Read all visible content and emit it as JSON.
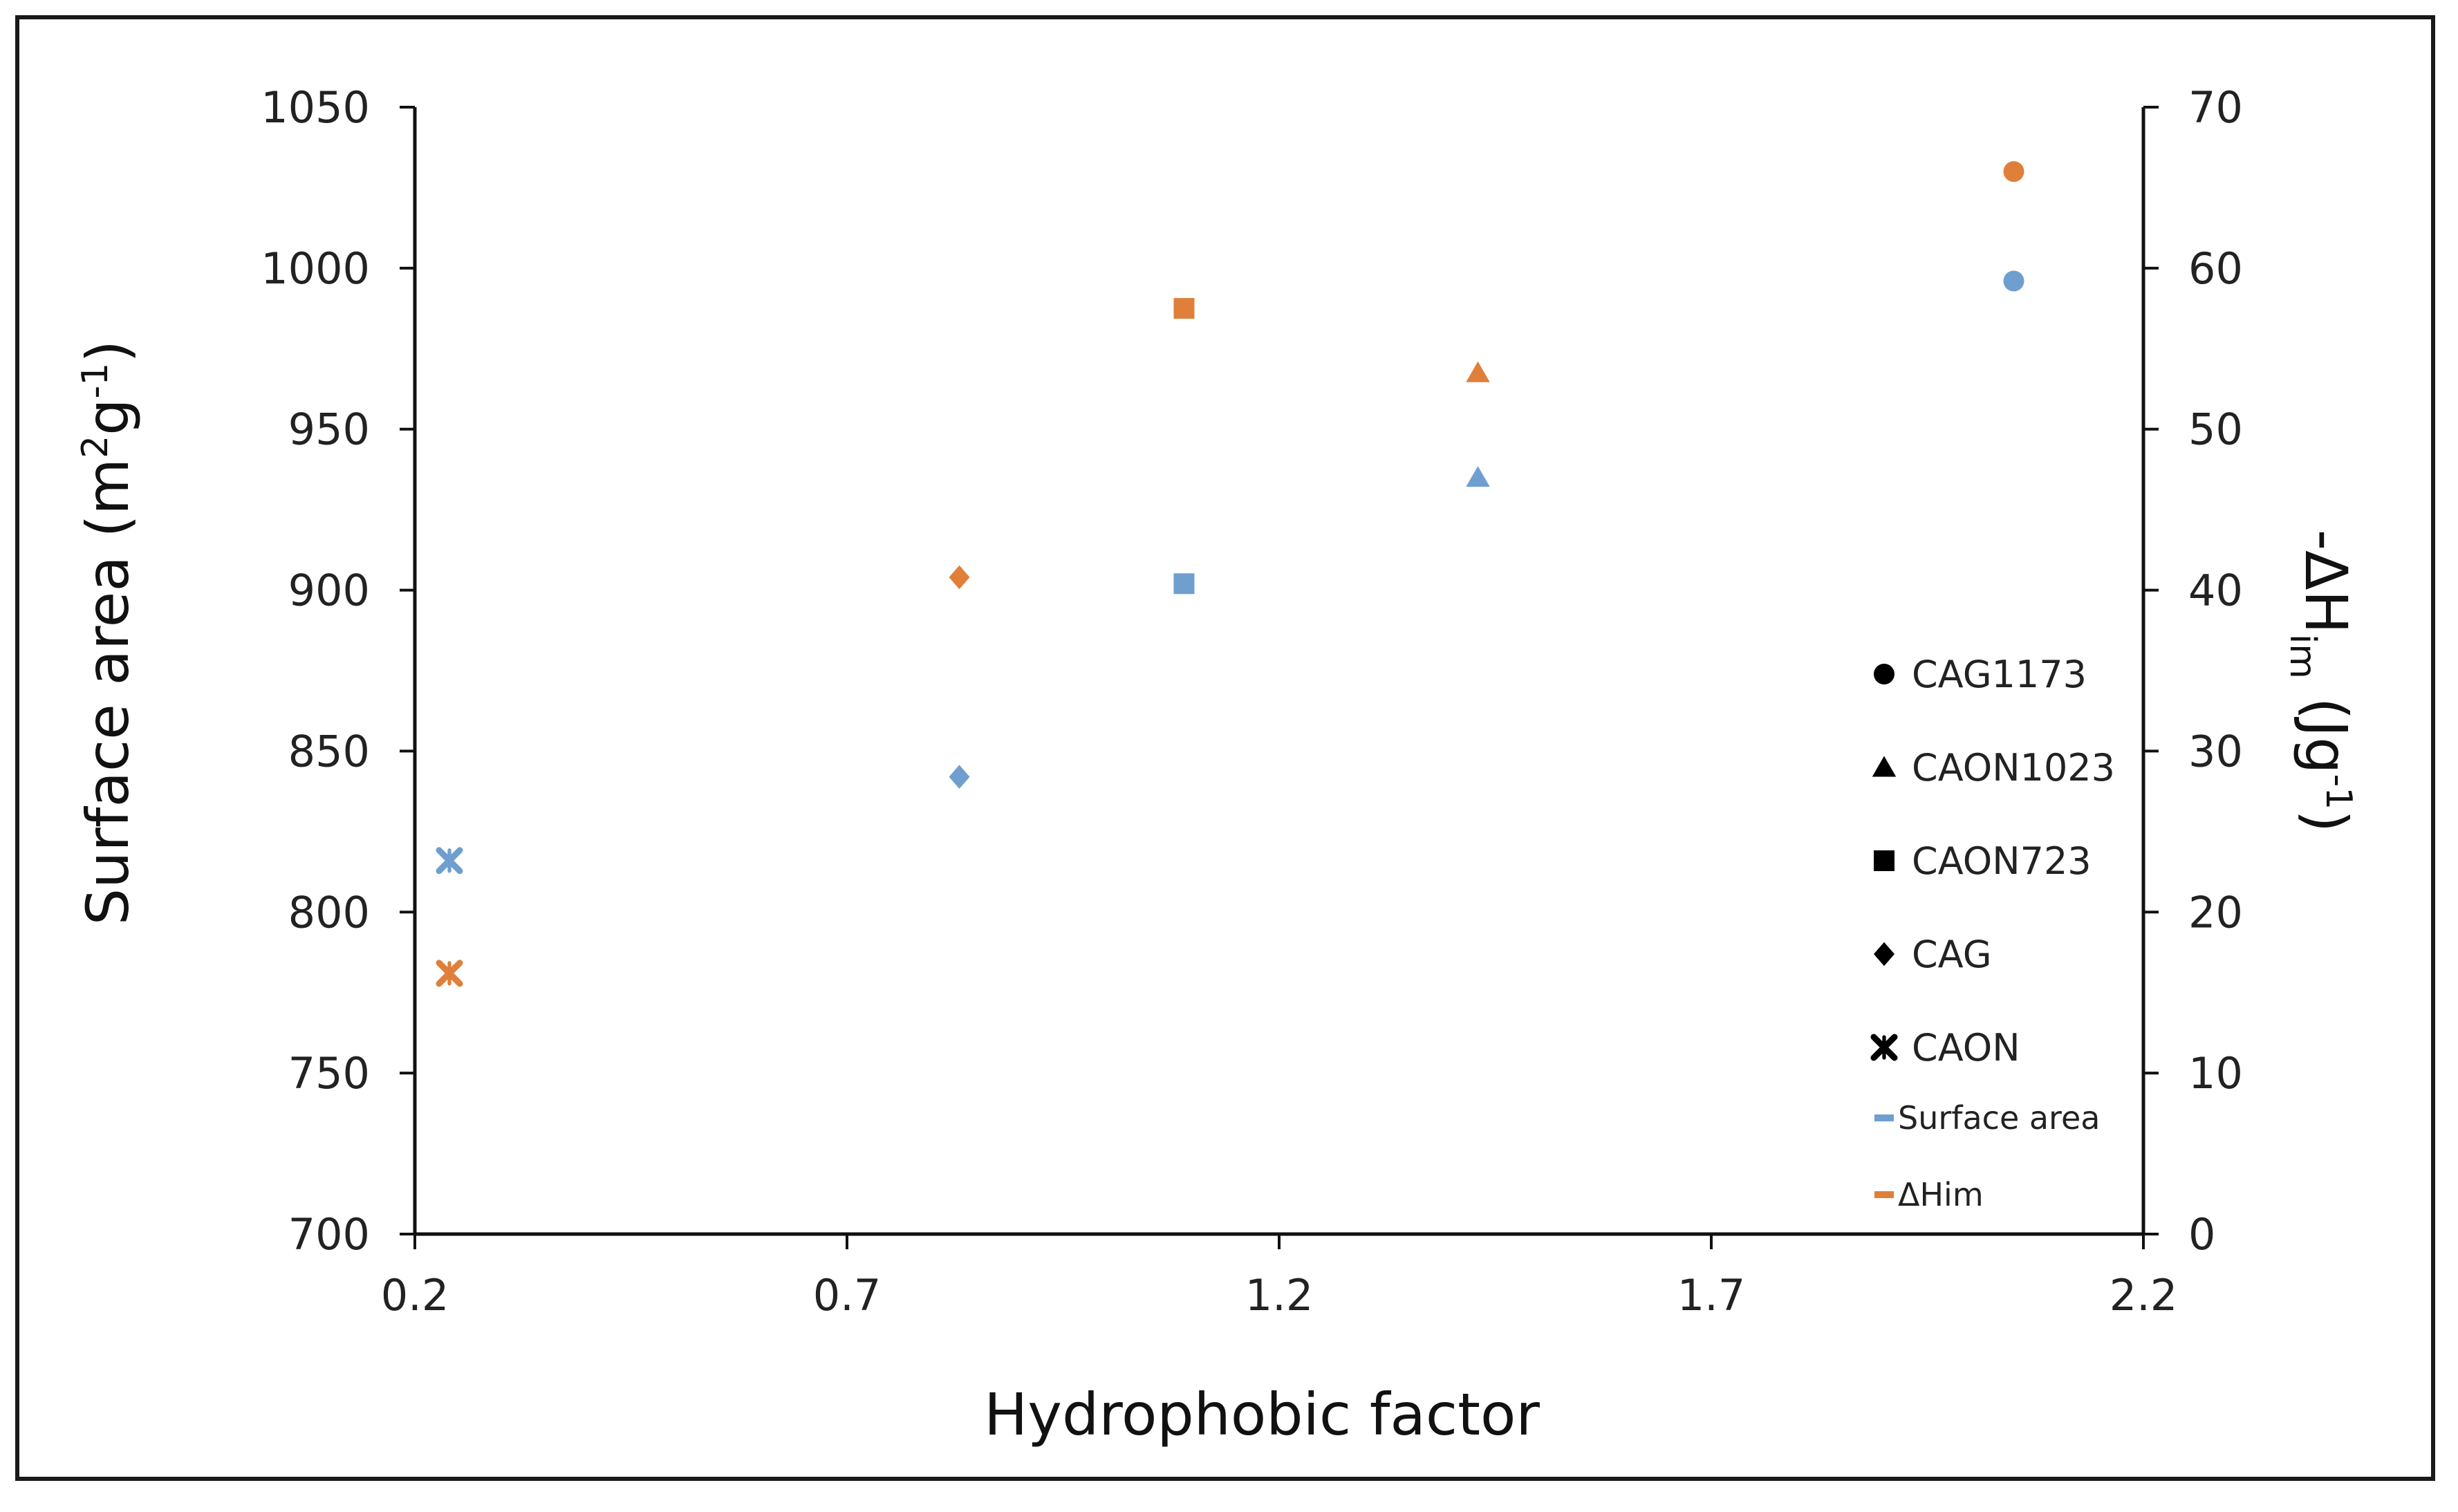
{
  "chart_data": {
    "type": "scatter",
    "title": "",
    "xlabel": "Hydrophobic factor",
    "ylabel_left": {
      "text": "Surface area (m",
      "sup1": "2",
      "mid": "g",
      "sup2": "-1",
      "end": ")"
    },
    "ylabel_right": {
      "text": "-ΔH",
      "sub": "im",
      "mid": " (Jg",
      "sup": "-1",
      "end": ")"
    },
    "xlim": [
      0.2,
      2.2
    ],
    "ylim_left": [
      700,
      1050
    ],
    "ylim_right": [
      0,
      70
    ],
    "x_ticks": [
      "0.2",
      "0.7",
      "1.2",
      "1.7",
      "2.2"
    ],
    "y_ticks_left": [
      "700",
      "750",
      "800",
      "850",
      "900",
      "950",
      "1000",
      "1050"
    ],
    "y_ticks_right": [
      "0",
      "10",
      "20",
      "30",
      "40",
      "50",
      "60",
      "70"
    ],
    "grid": false,
    "legend_position": "right",
    "colors": {
      "surface_area": "#6f9fcf",
      "dhim": "#e07f3a",
      "legend_marker": "#000000",
      "axis": "#111111"
    },
    "marker_legend": [
      {
        "label": "CAG1173",
        "marker": "circle"
      },
      {
        "label": "CAON1023",
        "marker": "triangle"
      },
      {
        "label": "CAON723",
        "marker": "square"
      },
      {
        "label": "CAG",
        "marker": "diamond"
      },
      {
        "label": "CAON",
        "marker": "star"
      }
    ],
    "series": [
      {
        "name": "Surface area",
        "axis": "left",
        "color": "#6f9fcf",
        "points": [
          {
            "sample": "CAG1173",
            "marker": "circle",
            "x": 2.05,
            "y": 996
          },
          {
            "sample": "CAON1023",
            "marker": "triangle",
            "x": 1.43,
            "y": 935
          },
          {
            "sample": "CAON723",
            "marker": "square",
            "x": 1.09,
            "y": 902
          },
          {
            "sample": "CAG",
            "marker": "diamond",
            "x": 0.83,
            "y": 842
          },
          {
            "sample": "CAON",
            "marker": "star",
            "x": 0.24,
            "y": 816
          }
        ]
      },
      {
        "name": "ΔHim",
        "axis": "right",
        "color": "#e07f3a",
        "points": [
          {
            "sample": "CAG1173",
            "marker": "circle",
            "x": 2.05,
            "y": 66
          },
          {
            "sample": "CAON1023",
            "marker": "triangle",
            "x": 1.43,
            "y": 53.5
          },
          {
            "sample": "CAON723",
            "marker": "square",
            "x": 1.09,
            "y": 57.5
          },
          {
            "sample": "CAG",
            "marker": "diamond",
            "x": 0.83,
            "y": 40.8
          },
          {
            "sample": "CAON",
            "marker": "star",
            "x": 0.24,
            "y": 16.2
          }
        ]
      }
    ]
  }
}
